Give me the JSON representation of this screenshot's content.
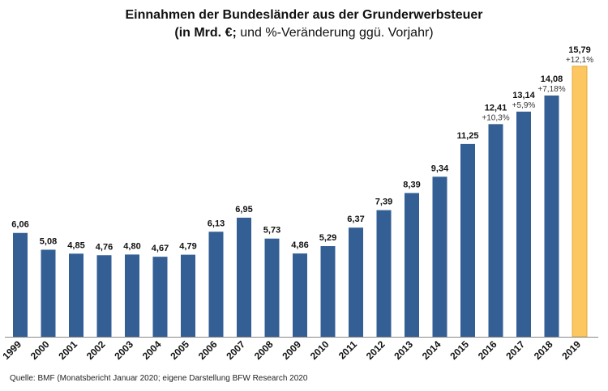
{
  "title_line1": "Einnahmen der Bundesländer aus der Grunderwerbsteuer",
  "title_line2_bold": "(in Mrd. €;",
  "title_line2_rest": " und %-Veränderung ggü. Vorjahr)",
  "source": "Quelle: BMF (Monatsbericht Januar 2020; eigene Darstellung BFW Research 2020",
  "colors": {
    "bar": "#345f94",
    "highlight": "#fcc660",
    "highlight_border": "#e0a93a",
    "axis": "#888888"
  },
  "chart_data": {
    "type": "bar",
    "title": "Einnahmen der Bundesländer aus der Grunderwerbsteuer (in Mrd. €; und %-Veränderung ggü. Vorjahr)",
    "categories": [
      "1999",
      "2000",
      "2001",
      "2002",
      "2003",
      "2004",
      "2005",
      "2006",
      "2007",
      "2008",
      "2009",
      "2010",
      "2011",
      "2012",
      "2013",
      "2014",
      "2015",
      "2016",
      "2017",
      "2018",
      "2019"
    ],
    "values": [
      6.06,
      5.08,
      4.85,
      4.76,
      4.8,
      4.67,
      4.79,
      6.13,
      6.95,
      5.73,
      4.86,
      5.29,
      6.37,
      7.39,
      8.39,
      9.34,
      11.25,
      12.41,
      13.14,
      14.08,
      15.79
    ],
    "value_labels": [
      "6,06",
      "5,08",
      "4,85",
      "4,76",
      "4,80",
      "4,67",
      "4,79",
      "6,13",
      "6,95",
      "5,73",
      "4,86",
      "5,29",
      "6,37",
      "7,39",
      "8,39",
      "9,34",
      "11,25",
      "12,41",
      "13,14",
      "14,08",
      "15,79"
    ],
    "change_labels": [
      "",
      "",
      "",
      "",
      "",
      "",
      "",
      "",
      "",
      "",
      "",
      "",
      "",
      "",
      "",
      "",
      "",
      "+10,3%",
      "+5,9%",
      "+7,18%",
      "+12,1%"
    ],
    "highlight_index": 20,
    "ylim": [
      0,
      16.3
    ],
    "grid": false,
    "xlabel": "",
    "ylabel": ""
  }
}
